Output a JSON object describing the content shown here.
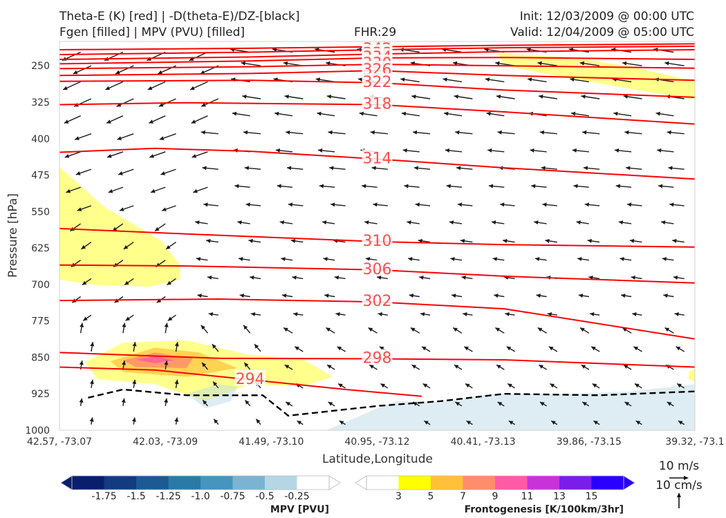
{
  "header": {
    "title_left_1": "Theta-E (K) [red] | -D(theta-E)/DZ-[black]",
    "title_left_2": "Fgen [filled] | MPV (PVU) [filled]",
    "fhr": "FHR:29",
    "init": "Init: 12/03/2009 @ 00:00 UTC",
    "valid": "Valid: 12/04/2009 @ 05:00 UTC"
  },
  "chart_data": {
    "type": "cross-section",
    "xlabel": "Latitude,Longitude",
    "ylabel": "Pressure [hPa]",
    "x_ticks": [
      "42.57, -73.07",
      "42.03, -73.09",
      "41.49, -73.10",
      "40.95, -73.12",
      "40.41, -73.13",
      "39.86, -73.15",
      "39.32, -73.1"
    ],
    "y_ticks": [
      250,
      325,
      400,
      475,
      550,
      625,
      700,
      775,
      850,
      925,
      1000
    ],
    "ylim": [
      1000,
      200
    ],
    "y_inverted": true,
    "theta_e_contours": [
      {
        "label": "348",
        "points": [
          [
            0,
            217
          ],
          [
            0.3,
            214
          ],
          [
            0.5,
            211
          ],
          [
            0.7,
            208
          ],
          [
            1,
            205
          ]
        ]
      },
      {
        "label": "342",
        "points": [
          [
            0,
            227
          ],
          [
            0.3,
            222
          ],
          [
            0.5,
            217
          ],
          [
            0.7,
            213
          ],
          [
            1,
            210
          ]
        ]
      },
      {
        "label": "338",
        "points": [
          [
            0,
            237
          ],
          [
            0.3,
            232
          ],
          [
            0.5,
            226
          ],
          [
            0.7,
            221
          ],
          [
            1,
            217
          ]
        ]
      },
      {
        "label": "334",
        "points": [
          [
            0,
            246
          ],
          [
            0.3,
            240
          ],
          [
            0.5,
            234
          ],
          [
            0.7,
            233
          ],
          [
            1,
            237
          ]
        ]
      },
      {
        "label": "330",
        "points": [
          [
            0,
            256
          ],
          [
            0.3,
            252
          ],
          [
            0.5,
            247
          ],
          [
            0.7,
            250
          ],
          [
            1,
            255
          ]
        ]
      },
      {
        "label": "326",
        "points": [
          [
            0,
            270
          ],
          [
            0.3,
            266
          ],
          [
            0.5,
            260
          ],
          [
            0.7,
            270
          ],
          [
            1,
            280
          ]
        ]
      },
      {
        "label": "322",
        "points": [
          [
            0,
            282
          ],
          [
            0.3,
            280
          ],
          [
            0.5,
            285
          ],
          [
            0.7,
            300
          ],
          [
            1,
            315
          ]
        ]
      },
      {
        "label": "318",
        "points": [
          [
            0,
            330
          ],
          [
            0.2,
            326
          ],
          [
            0.5,
            330
          ],
          [
            0.7,
            345
          ],
          [
            1,
            370
          ]
        ]
      },
      {
        "label": "314",
        "points": [
          [
            0,
            428
          ],
          [
            0.15,
            420
          ],
          [
            0.3,
            426
          ],
          [
            0.5,
            442
          ],
          [
            0.7,
            460
          ],
          [
            1,
            483
          ]
        ]
      },
      {
        "label": "310",
        "points": [
          [
            0,
            585
          ],
          [
            0.2,
            596
          ],
          [
            0.5,
            612
          ],
          [
            0.7,
            618
          ],
          [
            1,
            623
          ]
        ]
      },
      {
        "label": "306",
        "points": [
          [
            0,
            660
          ],
          [
            0.2,
            662
          ],
          [
            0.5,
            670
          ],
          [
            0.7,
            683
          ],
          [
            1,
            697
          ]
        ]
      },
      {
        "label": "302",
        "points": [
          [
            0,
            733
          ],
          [
            0.25,
            730
          ],
          [
            0.5,
            736
          ],
          [
            0.7,
            750
          ],
          [
            1,
            812
          ]
        ]
      },
      {
        "label": "298",
        "points": [
          [
            0,
            840
          ],
          [
            0.25,
            852
          ],
          [
            0.5,
            853
          ],
          [
            0.7,
            855
          ],
          [
            1,
            870
          ]
        ]
      },
      {
        "label": "294",
        "points": [
          [
            0,
            870
          ],
          [
            0.15,
            876
          ],
          [
            0.3,
            896
          ],
          [
            0.45,
            916
          ],
          [
            0.57,
            930
          ]
        ]
      }
    ],
    "stability_contour": {
      "label": "-D(theta-E)/DZ",
      "points": [
        [
          0.045,
          933
        ],
        [
          0.1,
          916
        ],
        [
          0.2,
          928
        ],
        [
          0.32,
          928
        ],
        [
          0.36,
          970
        ],
        [
          0.5,
          950
        ],
        [
          0.6,
          940
        ],
        [
          0.7,
          925
        ],
        [
          0.85,
          928
        ],
        [
          1,
          920
        ]
      ]
    },
    "fgen_range": [
      3,
      15
    ],
    "mpv_range": [
      -1.75,
      -0.25
    ],
    "wind_reference": {
      "h": "10 m/s",
      "v": "10 cm/s"
    },
    "colorbars": [
      {
        "label": "MPV [PVU]",
        "ticks": [
          "-1.75",
          "-1.5",
          "-1.25",
          "-1.0",
          "-0.75",
          "-0.5",
          "-0.25"
        ],
        "colors": [
          "#0a1e6e",
          "#123b80",
          "#1c5a94",
          "#2a7aa8",
          "#4595bf",
          "#79b5d2",
          "#b5d7e5",
          "#ffffff"
        ]
      },
      {
        "label": "Frontogenesis [K/100km/3hr]",
        "ticks": [
          "3",
          "5",
          "7",
          "9",
          "11",
          "13",
          "15"
        ],
        "colors": [
          "#ffffff",
          "#ffff00",
          "#ffc13a",
          "#ff8c6b",
          "#ff5aa5",
          "#c633d9",
          "#7a1de8",
          "#2a00ff"
        ]
      }
    ]
  }
}
